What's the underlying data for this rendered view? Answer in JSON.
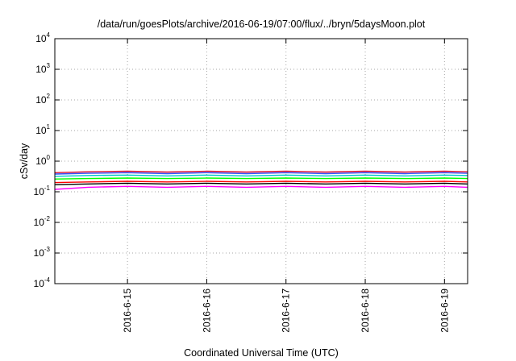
{
  "chart_data": {
    "type": "line",
    "title": "/data/run/goesPlots/archive/2016-06-19/07:00/flux/../bryn/5daysMoon.plot",
    "xlabel": "Coordinated Universal Time (UTC)",
    "ylabel": "cSv/day",
    "yscale": "log",
    "ylim": [
      0.0001,
      10000
    ],
    "xlim": [
      "2016-06-14T02:00",
      "2016-06-19T07:00"
    ],
    "grid": true,
    "y_ticks": [
      {
        "value": 0.0001,
        "base": "10",
        "exp": "-4"
      },
      {
        "value": 0.001,
        "base": "10",
        "exp": "-3"
      },
      {
        "value": 0.01,
        "base": "10",
        "exp": "-2"
      },
      {
        "value": 0.1,
        "base": "10",
        "exp": "-1"
      },
      {
        "value": 1,
        "base": "10",
        "exp": "0"
      },
      {
        "value": 10,
        "base": "10",
        "exp": "1"
      },
      {
        "value": 100,
        "base": "10",
        "exp": "2"
      },
      {
        "value": 1000,
        "base": "10",
        "exp": "3"
      },
      {
        "value": 10000,
        "base": "10",
        "exp": "4"
      }
    ],
    "x_ticks": [
      {
        "value": "2016-06-15T00:00",
        "label": "2016-6-15"
      },
      {
        "value": "2016-06-16T00:00",
        "label": "2016-6-16"
      },
      {
        "value": "2016-06-17T00:00",
        "label": "2016-6-17"
      },
      {
        "value": "2016-06-18T00:00",
        "label": "2016-6-18"
      },
      {
        "value": "2016-06-19T00:00",
        "label": "2016-6-19"
      }
    ],
    "series": [
      {
        "color": "#ff00ff",
        "x": [
          "2016-06-14T02:00",
          "2016-06-14T12:00",
          "2016-06-15T00:00",
          "2016-06-15T12:00",
          "2016-06-16T00:00",
          "2016-06-16T12:00",
          "2016-06-17T00:00",
          "2016-06-17T12:00",
          "2016-06-18T00:00",
          "2016-06-18T12:00",
          "2016-06-19T00:00",
          "2016-06-19T07:00"
        ],
        "values": [
          0.12,
          0.14,
          0.15,
          0.14,
          0.15,
          0.14,
          0.15,
          0.14,
          0.15,
          0.14,
          0.15,
          0.14
        ]
      },
      {
        "color": "#000000",
        "x": [
          "2016-06-14T02:00",
          "2016-06-14T12:00",
          "2016-06-15T00:00",
          "2016-06-15T12:00",
          "2016-06-16T00:00",
          "2016-06-16T12:00",
          "2016-06-17T00:00",
          "2016-06-17T12:00",
          "2016-06-18T00:00",
          "2016-06-18T12:00",
          "2016-06-19T00:00",
          "2016-06-19T07:00"
        ],
        "values": [
          0.17,
          0.18,
          0.19,
          0.18,
          0.19,
          0.18,
          0.19,
          0.18,
          0.19,
          0.18,
          0.19,
          0.18
        ]
      },
      {
        "color": "#ff0000",
        "x": [
          "2016-06-14T02:00",
          "2016-06-14T12:00",
          "2016-06-15T00:00",
          "2016-06-15T12:00",
          "2016-06-16T00:00",
          "2016-06-16T12:00",
          "2016-06-17T00:00",
          "2016-06-17T12:00",
          "2016-06-18T00:00",
          "2016-06-18T12:00",
          "2016-06-19T00:00",
          "2016-06-19T07:00"
        ],
        "values": [
          0.2,
          0.21,
          0.22,
          0.21,
          0.22,
          0.21,
          0.22,
          0.21,
          0.22,
          0.21,
          0.22,
          0.21
        ]
      },
      {
        "color": "#00ff00",
        "x": [
          "2016-06-14T02:00",
          "2016-06-14T12:00",
          "2016-06-15T00:00",
          "2016-06-15T12:00",
          "2016-06-16T00:00",
          "2016-06-16T12:00",
          "2016-06-17T00:00",
          "2016-06-17T12:00",
          "2016-06-18T00:00",
          "2016-06-18T12:00",
          "2016-06-19T00:00",
          "2016-06-19T07:00"
        ],
        "values": [
          0.26,
          0.27,
          0.28,
          0.27,
          0.28,
          0.27,
          0.28,
          0.27,
          0.28,
          0.27,
          0.28,
          0.27
        ]
      },
      {
        "color": "#00c8c8",
        "x": [
          "2016-06-14T02:00",
          "2016-06-14T12:00",
          "2016-06-15T00:00",
          "2016-06-15T12:00",
          "2016-06-16T00:00",
          "2016-06-16T12:00",
          "2016-06-17T00:00",
          "2016-06-17T12:00",
          "2016-06-18T00:00",
          "2016-06-18T12:00",
          "2016-06-19T00:00",
          "2016-06-19T07:00"
        ],
        "values": [
          0.32,
          0.34,
          0.35,
          0.33,
          0.35,
          0.33,
          0.35,
          0.33,
          0.35,
          0.33,
          0.35,
          0.34
        ]
      },
      {
        "color": "#3050ff",
        "x": [
          "2016-06-14T02:00",
          "2016-06-14T12:00",
          "2016-06-15T00:00",
          "2016-06-15T12:00",
          "2016-06-16T00:00",
          "2016-06-16T12:00",
          "2016-06-17T00:00",
          "2016-06-17T12:00",
          "2016-06-18T00:00",
          "2016-06-18T12:00",
          "2016-06-19T00:00",
          "2016-06-19T07:00"
        ],
        "values": [
          0.38,
          0.4,
          0.42,
          0.39,
          0.42,
          0.39,
          0.42,
          0.39,
          0.42,
          0.39,
          0.42,
          0.4
        ]
      },
      {
        "color": "#e01030",
        "x": [
          "2016-06-14T02:00",
          "2016-06-14T12:00",
          "2016-06-15T00:00",
          "2016-06-15T12:00",
          "2016-06-16T00:00",
          "2016-06-16T12:00",
          "2016-06-17T00:00",
          "2016-06-17T12:00",
          "2016-06-18T00:00",
          "2016-06-18T12:00",
          "2016-06-19T00:00",
          "2016-06-19T07:00"
        ],
        "values": [
          0.42,
          0.45,
          0.47,
          0.44,
          0.47,
          0.44,
          0.47,
          0.44,
          0.47,
          0.44,
          0.47,
          0.45
        ]
      }
    ]
  }
}
